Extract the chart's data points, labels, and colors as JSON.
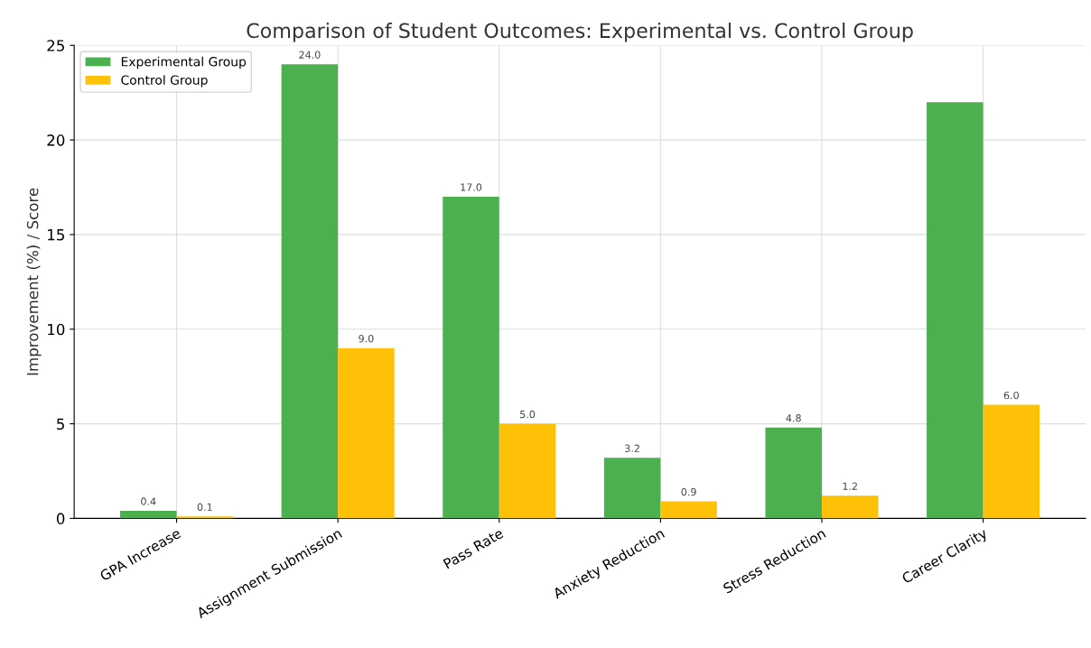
{
  "chart_data": {
    "type": "bar",
    "title": "Comparison of Student Outcomes: Experimental vs. Control Group",
    "ylabel": "Improvement (%) / Score",
    "categories": [
      "GPA Increase",
      "Assignment Submission",
      "Pass Rate",
      "Anxiety Reduction",
      "Stress Reduction",
      "Career Clarity"
    ],
    "series": [
      {
        "name": "Experimental Group",
        "color": "#4caf50",
        "values": [
          0.4,
          24,
          17,
          3.2,
          4.8,
          22
        ],
        "value_labels": [
          "0.4",
          "24.0",
          "17.0",
          "3.2",
          "4.8",
          null
        ]
      },
      {
        "name": "Control Group",
        "color": "#ffc107",
        "values": [
          0.1,
          9,
          5,
          0.9,
          1.2,
          6
        ],
        "value_labels": [
          "0.1",
          "9.0",
          "5.0",
          "0.9",
          "1.2",
          "6.0"
        ]
      }
    ],
    "ylim": [
      0,
      25
    ],
    "yticks": [
      0,
      5,
      10,
      15,
      20,
      25
    ],
    "grid": true,
    "legend": "top left"
  }
}
